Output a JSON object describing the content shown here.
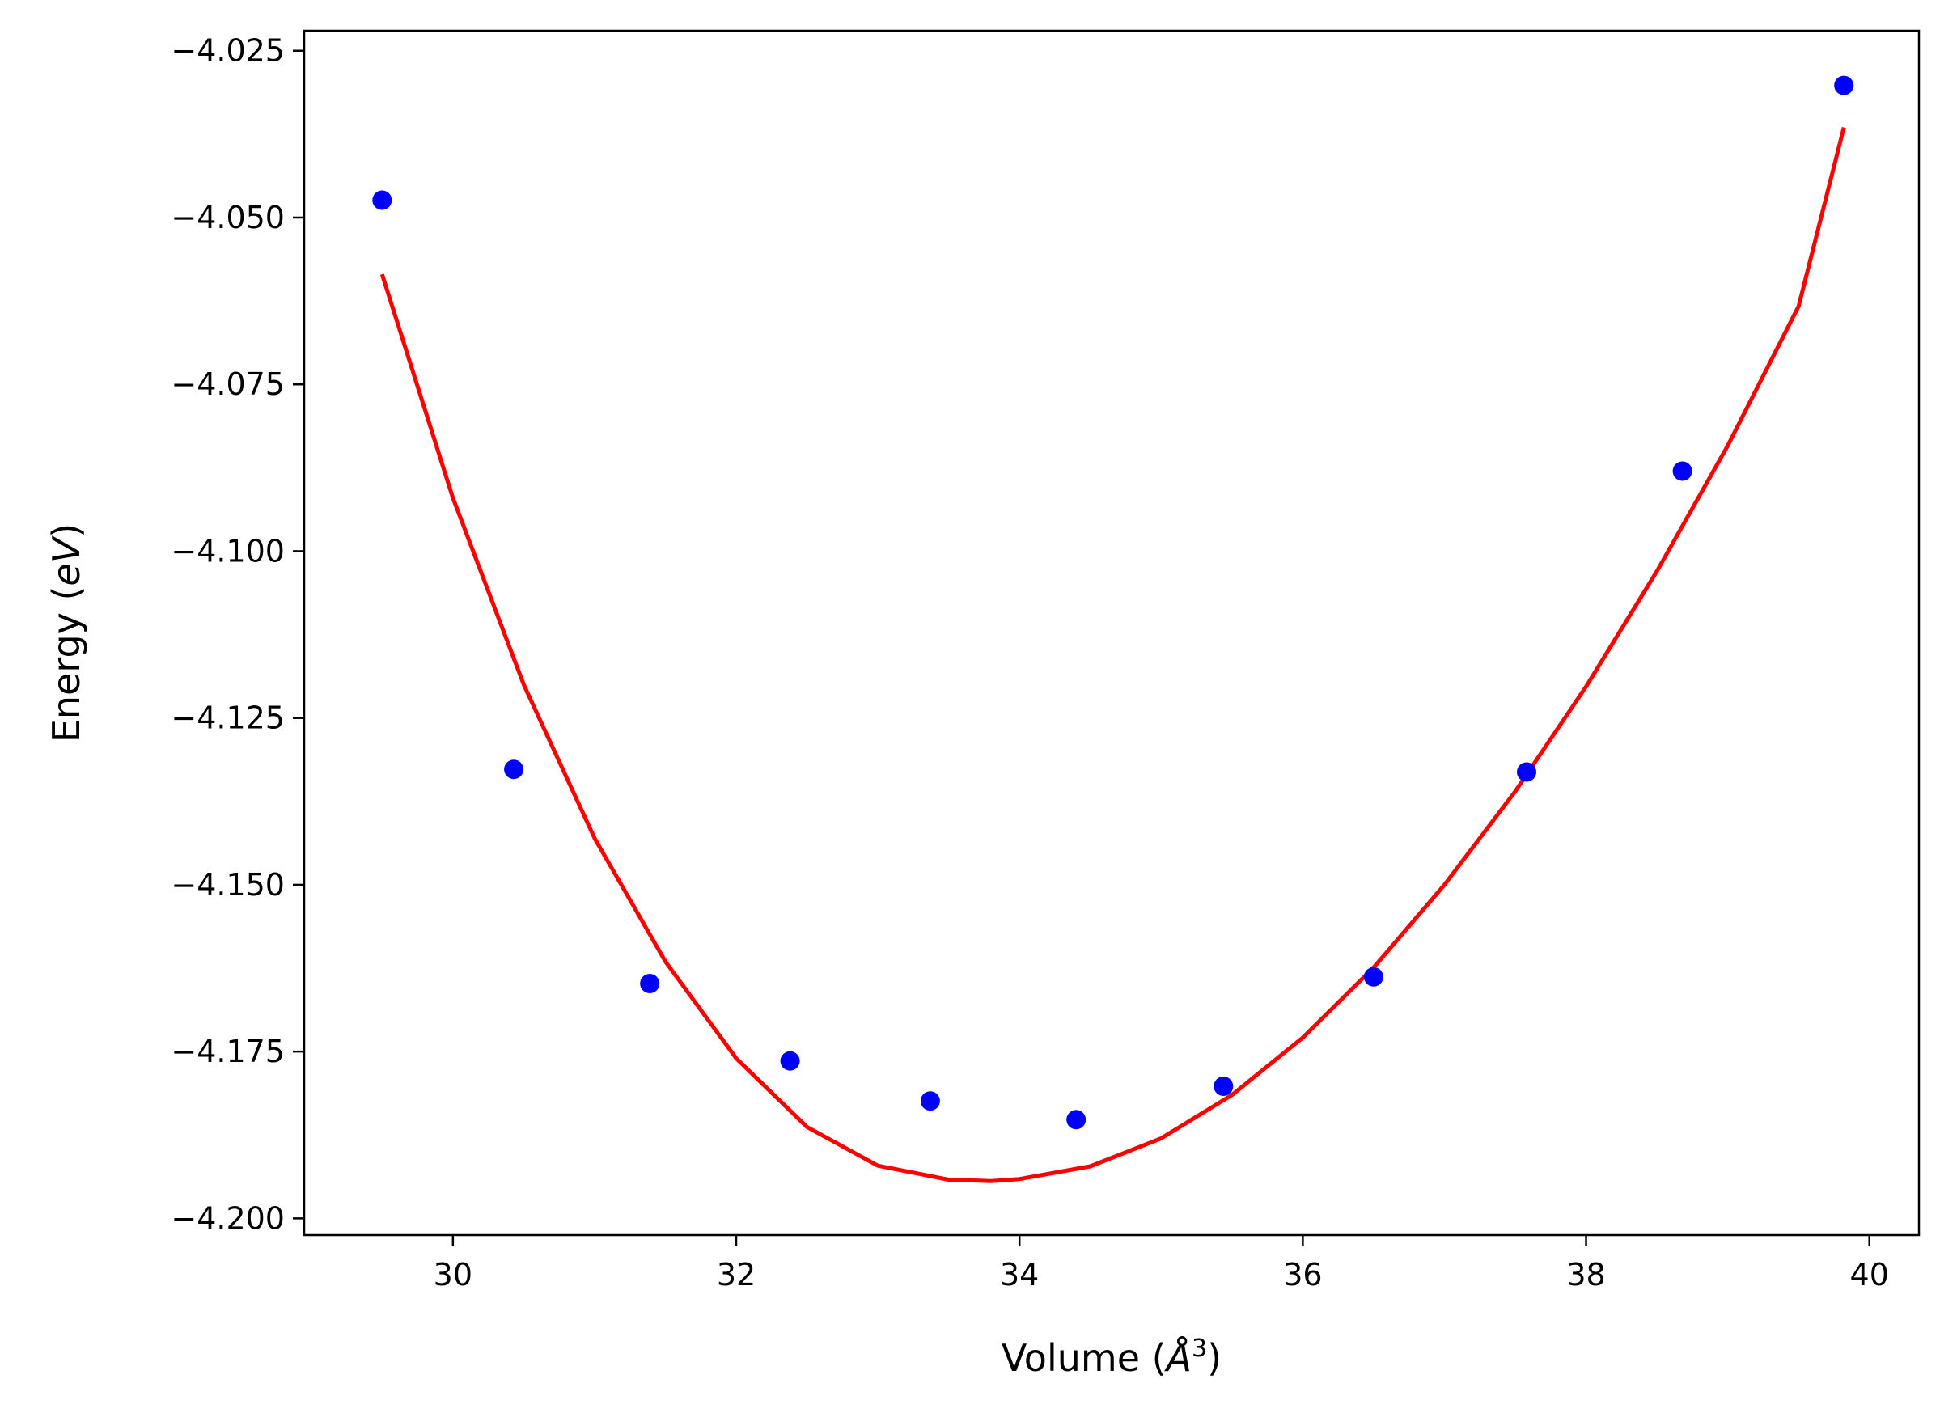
{
  "chart_data": {
    "type": "scatter",
    "xlabel_main": "Volume (",
    "xlabel_sym": "Å",
    "xlabel_sup": "3",
    "xlabel_end": ")",
    "ylabel_main": "Energy (",
    "ylabel_unit": "eV",
    "ylabel_end": ")",
    "xlim": [
      28.95,
      40.35
    ],
    "ylim": [
      -4.2025,
      -4.022
    ],
    "x_ticks": [
      30,
      32,
      34,
      36,
      38,
      40
    ],
    "x_tick_labels": [
      "30",
      "32",
      "34",
      "36",
      "38",
      "40"
    ],
    "y_ticks": [
      -4.2,
      -4.175,
      -4.15,
      -4.125,
      -4.1,
      -4.075,
      -4.05,
      -4.025
    ],
    "y_tick_labels": [
      "−4.200",
      "−4.175",
      "−4.150",
      "−4.125",
      "−4.100",
      "−4.075",
      "−4.050",
      "−4.025"
    ],
    "grid": false,
    "series": [
      {
        "kind": "points",
        "color": "#0000ff",
        "x": [
          29.5,
          30.43,
          31.39,
          32.38,
          33.37,
          34.4,
          35.44,
          36.5,
          37.58,
          38.68,
          39.82
        ],
        "y": [
          -4.0474,
          -4.1327,
          -4.1648,
          -4.1764,
          -4.1824,
          -4.1852,
          -4.1802,
          -4.1638,
          -4.1331,
          -4.088,
          -4.0302
        ]
      },
      {
        "kind": "fit-curve",
        "color": "#ff0000",
        "x": [
          29.5,
          30.0,
          30.5,
          31.0,
          31.5,
          32.0,
          32.5,
          33.0,
          33.5,
          33.8,
          34.0,
          34.5,
          35.0,
          35.5,
          36.0,
          36.5,
          37.0,
          37.5,
          38.0,
          38.5,
          39.0,
          39.5,
          39.82
        ],
        "y": [
          -4.0585,
          -4.092,
          -4.12,
          -4.143,
          -4.1615,
          -4.176,
          -4.1863,
          -4.1921,
          -4.1942,
          -4.1944,
          -4.1941,
          -4.1922,
          -4.188,
          -4.1815,
          -4.1729,
          -4.1624,
          -4.15,
          -4.136,
          -4.1203,
          -4.103,
          -4.0842,
          -4.0633,
          -4.0365
        ]
      }
    ]
  }
}
